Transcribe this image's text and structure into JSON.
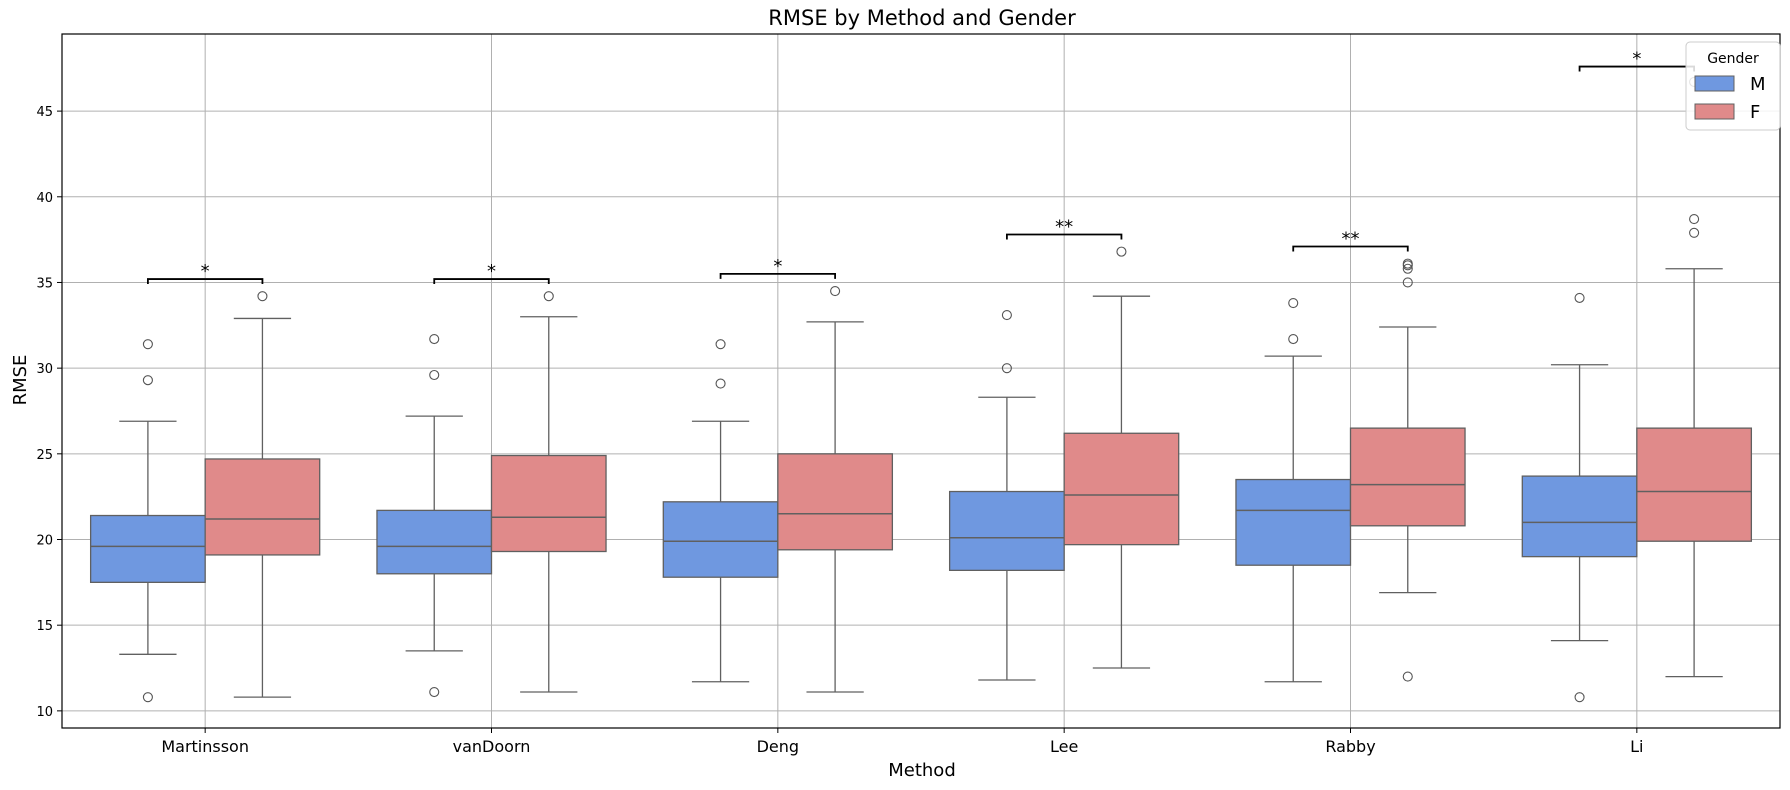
{
  "chart_data": {
    "type": "box",
    "title": "RMSE by Method and Gender",
    "xlabel": "Method",
    "ylabel": "RMSE",
    "ylim": [
      9,
      49.5
    ],
    "yticks": [
      10,
      15,
      20,
      25,
      30,
      35,
      40,
      45
    ],
    "grid": true,
    "legend": {
      "title": "Gender",
      "position": "top-right",
      "entries": [
        "M",
        "F"
      ]
    },
    "colors": {
      "M": "#6f98e0",
      "F": "#e08a8a",
      "whisker": "#606060",
      "axis": "#000000",
      "grid": "#b0b0b0"
    },
    "categories": [
      "Martinsson",
      "vanDoorn",
      "Deng",
      "Lee",
      "Rabby",
      "Li"
    ],
    "series": [
      {
        "name": "M",
        "boxes": [
          {
            "whislo": 13.3,
            "q1": 17.5,
            "med": 19.6,
            "q3": 21.4,
            "whishi": 26.9,
            "fliers": [
              10.8,
              29.3,
              31.4
            ]
          },
          {
            "whislo": 13.5,
            "q1": 18.0,
            "med": 19.6,
            "q3": 21.7,
            "whishi": 27.2,
            "fliers": [
              11.1,
              29.6,
              31.7
            ]
          },
          {
            "whislo": 11.7,
            "q1": 17.8,
            "med": 19.9,
            "q3": 22.2,
            "whishi": 26.9,
            "fliers": [
              29.1,
              31.4
            ]
          },
          {
            "whislo": 11.8,
            "q1": 18.2,
            "med": 20.1,
            "q3": 22.8,
            "whishi": 28.3,
            "fliers": [
              30.0,
              33.1
            ]
          },
          {
            "whislo": 11.7,
            "q1": 18.5,
            "med": 21.7,
            "q3": 23.5,
            "whishi": 30.7,
            "fliers": [
              31.7,
              33.8
            ]
          },
          {
            "whislo": 14.1,
            "q1": 19.0,
            "med": 21.0,
            "q3": 23.7,
            "whishi": 30.2,
            "fliers": [
              10.8,
              34.1
            ]
          }
        ]
      },
      {
        "name": "F",
        "boxes": [
          {
            "whislo": 10.8,
            "q1": 19.1,
            "med": 21.2,
            "q3": 24.7,
            "whishi": 32.9,
            "fliers": [
              34.2
            ]
          },
          {
            "whislo": 11.1,
            "q1": 19.3,
            "med": 21.3,
            "q3": 24.9,
            "whishi": 33.0,
            "fliers": [
              34.2
            ]
          },
          {
            "whislo": 11.1,
            "q1": 19.4,
            "med": 21.5,
            "q3": 25.0,
            "whishi": 32.7,
            "fliers": [
              34.5
            ]
          },
          {
            "whislo": 12.5,
            "q1": 19.7,
            "med": 22.6,
            "q3": 26.2,
            "whishi": 34.2,
            "fliers": [
              36.8
            ]
          },
          {
            "whislo": 16.9,
            "q1": 20.8,
            "med": 23.2,
            "q3": 26.5,
            "whishi": 32.4,
            "fliers": [
              12.0,
              35.0,
              35.8,
              36.0,
              36.1
            ]
          },
          {
            "whislo": 12.0,
            "q1": 19.9,
            "med": 22.8,
            "q3": 26.5,
            "whishi": 35.8,
            "fliers": [
              37.9,
              38.7,
              46.7
            ]
          }
        ]
      }
    ],
    "annotations": [
      {
        "category": "Martinsson",
        "label": "*",
        "y": 35.2
      },
      {
        "category": "vanDoorn",
        "label": "*",
        "y": 35.2
      },
      {
        "category": "Deng",
        "label": "*",
        "y": 35.5
      },
      {
        "category": "Lee",
        "label": "**",
        "y": 37.8
      },
      {
        "category": "Rabby",
        "label": "**",
        "y": 37.1
      },
      {
        "category": "Li",
        "label": "*",
        "y": 47.6
      }
    ]
  }
}
